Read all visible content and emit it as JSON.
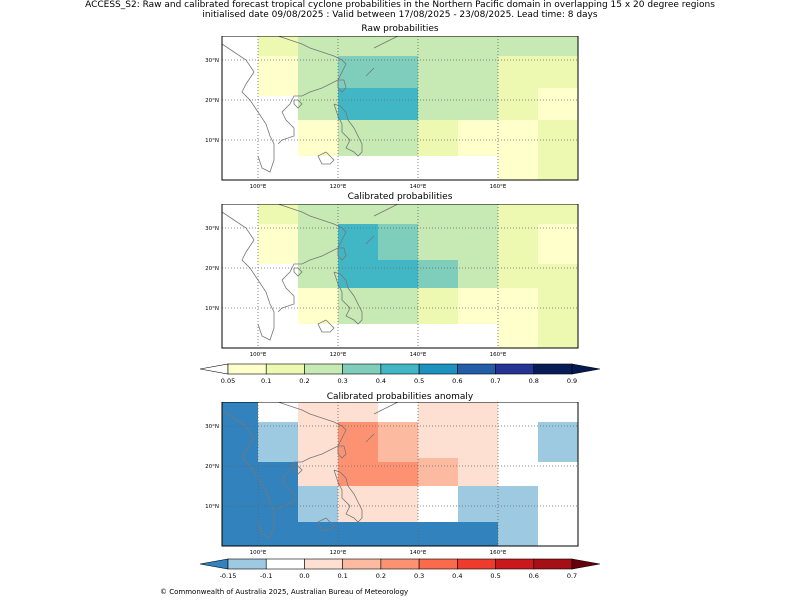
{
  "header": {
    "line1": "ACCESS_S2: Raw and calibrated forecast tropical cyclone probabilities in the Northern Pacific domain in overlapping 15 x 20 degree regions",
    "line2": "initialised date 09/08/2025 :  Valid between 17/08/2025 - 23/08/2025. Lead time: 8 days"
  },
  "axes": {
    "lon_labels": [
      "100°E",
      "120°E",
      "140°E",
      "160°E"
    ],
    "lat_labels": [
      "30°N",
      "20°N",
      "10°N"
    ],
    "lon_values": [
      100,
      120,
      140,
      160
    ],
    "lat_values": [
      30,
      20,
      10
    ]
  },
  "colorscales": {
    "prob": {
      "ticks": [
        "0.05",
        "0.1",
        "0.2",
        "0.3",
        "0.4",
        "0.5",
        "0.6",
        "0.7",
        "0.8",
        "0.9"
      ],
      "colors": [
        "#ffffff",
        "#ffffcc",
        "#edf8b1",
        "#c7e9b4",
        "#7fcdbb",
        "#41b6c4",
        "#1d91c0",
        "#225ea8",
        "#253494",
        "#081d58",
        "#061a50"
      ]
    },
    "anom": {
      "ticks": [
        "-0.15",
        "-0.1",
        "0.0",
        "0.1",
        "0.2",
        "0.3",
        "0.4",
        "0.5",
        "0.6",
        "0.7"
      ],
      "colors": [
        "#3182bd",
        "#9ecae1",
        "#ffffff",
        "#fee0d2",
        "#fcbba1",
        "#fc9272",
        "#fb6a4a",
        "#ef3b2c",
        "#cb181d",
        "#a50f15",
        "#67000d"
      ]
    }
  },
  "map_panels": [
    {
      "key": "raw",
      "title": "Raw probabilities",
      "colorscale": "prob",
      "cells": [
        {
          "lon": [
            100,
            110
          ],
          "lat": [
            31,
            36
          ],
          "v": 2
        },
        {
          "lon": [
            110,
            130
          ],
          "lat": [
            31,
            36
          ],
          "v": 3
        },
        {
          "lon": [
            130,
            140
          ],
          "lat": [
            31,
            36
          ],
          "v": 3
        },
        {
          "lon": [
            140,
            160
          ],
          "lat": [
            31,
            36
          ],
          "v": 3
        },
        {
          "lon": [
            160,
            180
          ],
          "lat": [
            31,
            36
          ],
          "v": 3
        },
        {
          "lon": [
            100,
            110
          ],
          "lat": [
            21,
            31
          ],
          "v": 1
        },
        {
          "lon": [
            110,
            120
          ],
          "lat": [
            21,
            31
          ],
          "v": 3
        },
        {
          "lon": [
            120,
            140
          ],
          "lat": [
            25,
            31
          ],
          "v": 4
        },
        {
          "lon": [
            120,
            140
          ],
          "lat": [
            21,
            25
          ],
          "v": 4
        },
        {
          "lon": [
            140,
            160
          ],
          "lat": [
            21,
            31
          ],
          "v": 3
        },
        {
          "lon": [
            160,
            180
          ],
          "lat": [
            21,
            31
          ],
          "v": 2
        },
        {
          "lon": [
            110,
            120
          ],
          "lat": [
            15,
            21
          ],
          "v": 3
        },
        {
          "lon": [
            120,
            140
          ],
          "lat": [
            15,
            23
          ],
          "v": 5
        },
        {
          "lon": [
            140,
            160
          ],
          "lat": [
            15,
            21
          ],
          "v": 3
        },
        {
          "lon": [
            160,
            170
          ],
          "lat": [
            15,
            21
          ],
          "v": 2
        },
        {
          "lon": [
            170,
            180
          ],
          "lat": [
            15,
            23
          ],
          "v": 1
        },
        {
          "lon": [
            110,
            120
          ],
          "lat": [
            6,
            15
          ],
          "v": 1
        },
        {
          "lon": [
            120,
            140
          ],
          "lat": [
            6,
            15
          ],
          "v": 3
        },
        {
          "lon": [
            140,
            150
          ],
          "lat": [
            6,
            15
          ],
          "v": 2
        },
        {
          "lon": [
            150,
            160
          ],
          "lat": [
            6,
            15
          ],
          "v": 1
        },
        {
          "lon": [
            160,
            170
          ],
          "lat": [
            0,
            15
          ],
          "v": 1
        },
        {
          "lon": [
            170,
            180
          ],
          "lat": [
            0,
            15
          ],
          "v": 2
        }
      ]
    },
    {
      "key": "cal",
      "title": "Calibrated probabilities",
      "colorscale": "prob",
      "cells": [
        {
          "lon": [
            100,
            110
          ],
          "lat": [
            31,
            36
          ],
          "v": 2
        },
        {
          "lon": [
            110,
            130
          ],
          "lat": [
            31,
            36
          ],
          "v": 3
        },
        {
          "lon": [
            130,
            140
          ],
          "lat": [
            31,
            36
          ],
          "v": 3
        },
        {
          "lon": [
            140,
            160
          ],
          "lat": [
            31,
            36
          ],
          "v": 3
        },
        {
          "lon": [
            160,
            180
          ],
          "lat": [
            31,
            36
          ],
          "v": 2
        },
        {
          "lon": [
            100,
            110
          ],
          "lat": [
            21,
            31
          ],
          "v": 1
        },
        {
          "lon": [
            110,
            120
          ],
          "lat": [
            21,
            31
          ],
          "v": 3
        },
        {
          "lon": [
            120,
            130
          ],
          "lat": [
            21,
            31
          ],
          "v": 5
        },
        {
          "lon": [
            130,
            140
          ],
          "lat": [
            21,
            31
          ],
          "v": 4
        },
        {
          "lon": [
            140,
            160
          ],
          "lat": [
            21,
            31
          ],
          "v": 3
        },
        {
          "lon": [
            160,
            170
          ],
          "lat": [
            21,
            31
          ],
          "v": 2
        },
        {
          "lon": [
            170,
            180
          ],
          "lat": [
            21,
            31
          ],
          "v": 1
        },
        {
          "lon": [
            110,
            120
          ],
          "lat": [
            15,
            21
          ],
          "v": 3
        },
        {
          "lon": [
            120,
            140
          ],
          "lat": [
            15,
            22
          ],
          "v": 5
        },
        {
          "lon": [
            140,
            150
          ],
          "lat": [
            15,
            22
          ],
          "v": 4
        },
        {
          "lon": [
            150,
            160
          ],
          "lat": [
            15,
            21
          ],
          "v": 3
        },
        {
          "lon": [
            160,
            180
          ],
          "lat": [
            15,
            21
          ],
          "v": 2
        },
        {
          "lon": [
            110,
            120
          ],
          "lat": [
            6,
            15
          ],
          "v": 1
        },
        {
          "lon": [
            120,
            140
          ],
          "lat": [
            6,
            15
          ],
          "v": 3
        },
        {
          "lon": [
            140,
            150
          ],
          "lat": [
            6,
            15
          ],
          "v": 2
        },
        {
          "lon": [
            150,
            160
          ],
          "lat": [
            6,
            15
          ],
          "v": 1
        },
        {
          "lon": [
            160,
            170
          ],
          "lat": [
            0,
            15
          ],
          "v": 1
        },
        {
          "lon": [
            170,
            180
          ],
          "lat": [
            0,
            15
          ],
          "v": 2
        }
      ]
    },
    {
      "key": "anom",
      "title": "Calibrated probabilities anomaly",
      "colorscale": "anom",
      "cells": [
        {
          "lon": [
            91,
            100
          ],
          "lat": [
            0,
            36
          ],
          "v": 0
        },
        {
          "lon": [
            100,
            110
          ],
          "lat": [
            21,
            31
          ],
          "v": 1
        },
        {
          "lon": [
            100,
            110
          ],
          "lat": [
            0,
            21
          ],
          "v": 0
        },
        {
          "lon": [
            110,
            130
          ],
          "lat": [
            31,
            36
          ],
          "v": 3
        },
        {
          "lon": [
            110,
            120
          ],
          "lat": [
            15,
            31
          ],
          "v": 3
        },
        {
          "lon": [
            120,
            130
          ],
          "lat": [
            21,
            31
          ],
          "v": 5
        },
        {
          "lon": [
            130,
            140
          ],
          "lat": [
            21,
            31
          ],
          "v": 4
        },
        {
          "lon": [
            140,
            150
          ],
          "lat": [
            15,
            22
          ],
          "v": 4
        },
        {
          "lon": [
            140,
            160
          ],
          "lat": [
            22,
            36
          ],
          "v": 3
        },
        {
          "lon": [
            150,
            160
          ],
          "lat": [
            15,
            22
          ],
          "v": 3
        },
        {
          "lon": [
            120,
            140
          ],
          "lat": [
            15,
            21
          ],
          "v": 5
        },
        {
          "lon": [
            110,
            120
          ],
          "lat": [
            6,
            15
          ],
          "v": 1
        },
        {
          "lon": [
            120,
            140
          ],
          "lat": [
            6,
            15
          ],
          "v": 3
        },
        {
          "lon": [
            150,
            170
          ],
          "lat": [
            6,
            15
          ],
          "v": 1
        },
        {
          "lon": [
            170,
            180
          ],
          "lat": [
            21,
            31
          ],
          "v": 1
        },
        {
          "lon": [
            110,
            160
          ],
          "lat": [
            0,
            6
          ],
          "v": 0
        },
        {
          "lon": [
            160,
            170
          ],
          "lat": [
            0,
            6
          ],
          "v": 1
        }
      ]
    }
  ],
  "colorbars": {
    "top": {
      "scale": "prob"
    },
    "bottom": {
      "scale": "anom"
    }
  },
  "footer": {
    "text": "© Commonwealth of Australia 2025, Australian Bureau of Meteorology"
  }
}
